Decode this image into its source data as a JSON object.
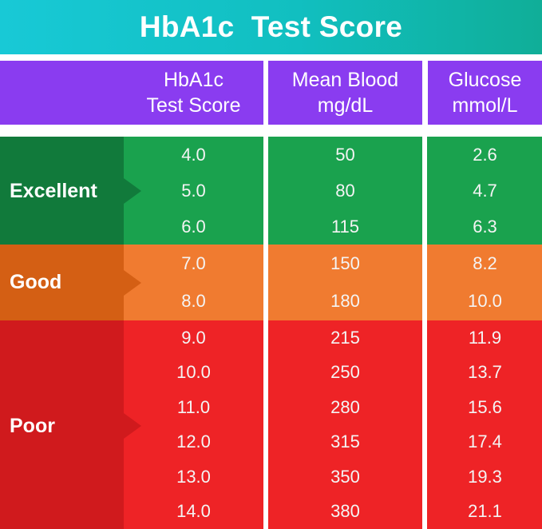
{
  "title": "HbA1c  Test Score",
  "header": {
    "col1": [
      "HbA1c",
      "Test Score"
    ],
    "col2": [
      "Mean Blood",
      "mg/dL"
    ],
    "col3": [
      "Glucose",
      "mmol/L"
    ]
  },
  "colors": {
    "title_bar": "#11bfc0",
    "header": "#8a3cf0",
    "excellent": "#1aa24e",
    "good": "#f07b30",
    "poor": "#ee2326"
  },
  "categories": [
    {
      "label": "Excellent",
      "rows": [
        {
          "hba1c": "4.0",
          "mg": "50",
          "mmol": "2.6"
        },
        {
          "hba1c": "5.0",
          "mg": "80",
          "mmol": "4.7"
        },
        {
          "hba1c": "6.0",
          "mg": "115",
          "mmol": "6.3"
        }
      ]
    },
    {
      "label": "Good",
      "rows": [
        {
          "hba1c": "7.0",
          "mg": "150",
          "mmol": "8.2"
        },
        {
          "hba1c": "8.0",
          "mg": "180",
          "mmol": "10.0"
        }
      ]
    },
    {
      "label": "Poor",
      "rows": [
        {
          "hba1c": "9.0",
          "mg": "215",
          "mmol": "11.9"
        },
        {
          "hba1c": "10.0",
          "mg": "250",
          "mmol": "13.7"
        },
        {
          "hba1c": "11.0",
          "mg": "280",
          "mmol": "15.6"
        },
        {
          "hba1c": "12.0",
          "mg": "315",
          "mmol": "17.4"
        },
        {
          "hba1c": "13.0",
          "mg": "350",
          "mmol": "19.3"
        },
        {
          "hba1c": "14.0",
          "mg": "380",
          "mmol": "21.1"
        }
      ]
    }
  ]
}
